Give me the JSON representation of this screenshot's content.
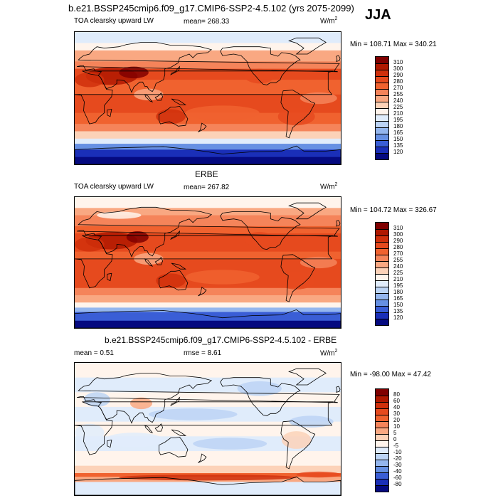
{
  "header": {
    "title": "b.e21.BSSP245cmip6.f09_g17.CMIP6-SSP2-4.5.102 (yrs 2075-2099)",
    "season": "JJA"
  },
  "chart_data": [
    {
      "type": "heatmap",
      "panel": "model",
      "title": "",
      "left_label": "TOA clearsky upward LW",
      "center_label": "mean= 268.33",
      "units": "W/m",
      "units_sup": "2",
      "range_text": "Min = 108.71 Max = 340.21",
      "mean": 268.33,
      "min": 108.71,
      "max": 340.21,
      "levels": [
        "310",
        "300",
        "290",
        "280",
        "270",
        "255",
        "240",
        "225",
        "210",
        "195",
        "180",
        "165",
        "150",
        "135",
        "120"
      ],
      "colors": [
        "#800000",
        "#b01800",
        "#d0300c",
        "#e64a1e",
        "#f0622f",
        "#f5845a",
        "#f9a882",
        "#fcd2b8",
        "#fff4ec",
        "#e0ecfb",
        "#bcd4f5",
        "#94b6ee",
        "#6690e3",
        "#3a5ed6",
        "#1a2fb8",
        "#050a80"
      ]
    },
    {
      "type": "heatmap",
      "panel": "obs",
      "title": "ERBE",
      "left_label": "TOA clearsky upward LW",
      "center_label": "mean= 267.82",
      "units": "W/m",
      "units_sup": "2",
      "range_text": "Min = 104.72 Max = 326.67",
      "mean": 267.82,
      "min": 104.72,
      "max": 326.67,
      "levels": [
        "310",
        "300",
        "290",
        "280",
        "270",
        "255",
        "240",
        "225",
        "210",
        "195",
        "180",
        "165",
        "150",
        "135",
        "120"
      ],
      "colors": [
        "#800000",
        "#b01800",
        "#d0300c",
        "#e64a1e",
        "#f0622f",
        "#f5845a",
        "#f9a882",
        "#fcd2b8",
        "#fff4ec",
        "#e0ecfb",
        "#bcd4f5",
        "#94b6ee",
        "#6690e3",
        "#3a5ed6",
        "#1a2fb8",
        "#050a80"
      ]
    },
    {
      "type": "heatmap",
      "panel": "diff",
      "title": "b.e21.BSSP245cmip6.f09_g17.CMIP6-SSP2-4.5.102 - ERBE",
      "left_label": "mean =   0.51",
      "center_label": "rmse =   8.61",
      "units": "W/m",
      "units_sup": "2",
      "range_text": "Min = -98.00 Max =  47.42",
      "mean": 0.51,
      "rmse": 8.61,
      "min": -98.0,
      "max": 47.42,
      "levels": [
        "80",
        "60",
        "40",
        "30",
        "20",
        "10",
        "5",
        "0",
        "-5",
        "-10",
        "-20",
        "-30",
        "-40",
        "-60",
        "-80"
      ],
      "colors": [
        "#800000",
        "#b01800",
        "#d0300c",
        "#e64a1e",
        "#f0622f",
        "#f5845a",
        "#f9a882",
        "#fcd2b8",
        "#fff4ec",
        "#e0ecfb",
        "#bcd4f5",
        "#94b6ee",
        "#6690e3",
        "#3a5ed6",
        "#1a2fb8",
        "#050a80"
      ]
    }
  ]
}
